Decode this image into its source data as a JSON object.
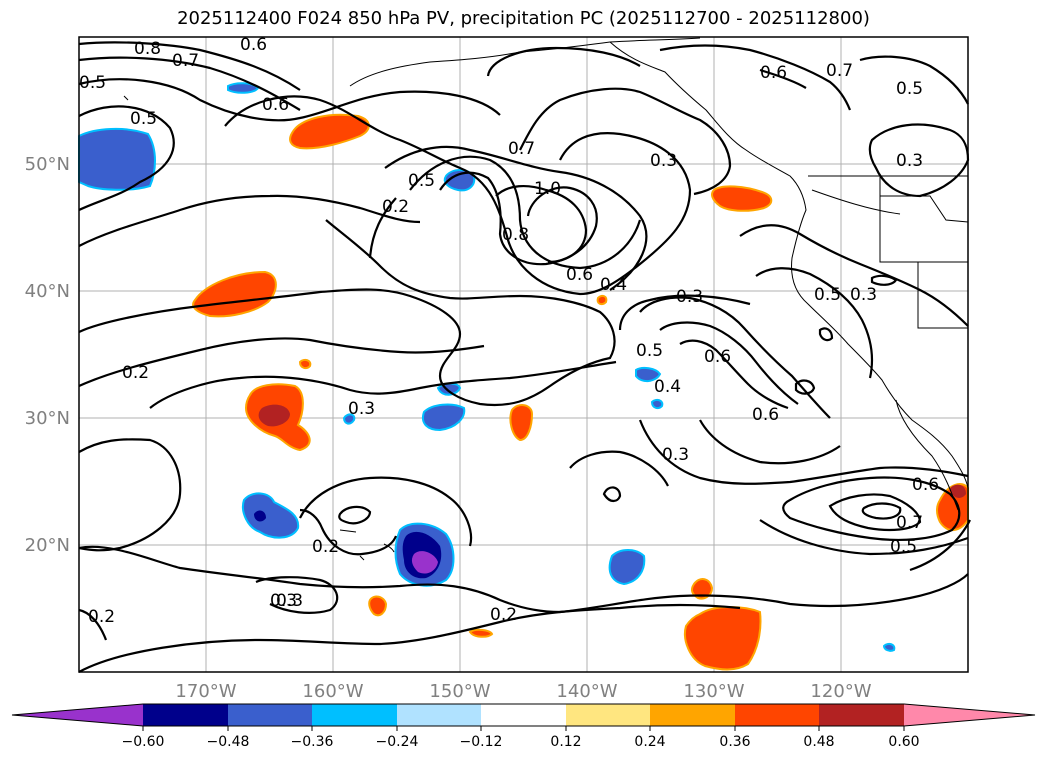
{
  "title": "2025112400 F024 850 hPa PV, precipitation PC (2025112700 - 2025112800)",
  "map": {
    "lon_range": [
      -180,
      -110
    ],
    "lat_range": [
      10,
      60
    ],
    "lon_ticks": [
      "170°W",
      "160°W",
      "150°W",
      "140°W",
      "130°W",
      "120°W"
    ],
    "lat_ticks": [
      "20°N",
      "30°N",
      "40°N",
      "50°N"
    ],
    "contour_labels": [
      "0.8",
      "0.7",
      "0.6",
      "0.5",
      "0.5",
      "0.6",
      "0.7",
      "0.3",
      "1.0",
      "0.2",
      "0.5",
      "0.8",
      "0.6",
      "0.4",
      "0.3",
      "0.5",
      "0.3",
      "0.6",
      "0.3",
      "0.7",
      "0.5",
      "0.3",
      "0.2",
      "0.3",
      "0.5",
      "0.4",
      "0.6",
      "0.6",
      "0.3",
      "0.2",
      "0.3",
      "0.2",
      "0.6",
      "0.7",
      "0.5",
      "0.2"
    ]
  },
  "colorbar": {
    "ticks": [
      "−0.60",
      "−0.48",
      "−0.36",
      "−0.24",
      "−0.12",
      "0.12",
      "0.24",
      "0.36",
      "0.48",
      "0.60"
    ],
    "colors": [
      "#9932cc",
      "#00008b",
      "#3a5fcd",
      "#00bfff",
      "#b0e2ff",
      "#ffffff",
      "#ffe680",
      "#ffa500",
      "#ff4500",
      "#b22222",
      "#ff88aa"
    ]
  }
}
